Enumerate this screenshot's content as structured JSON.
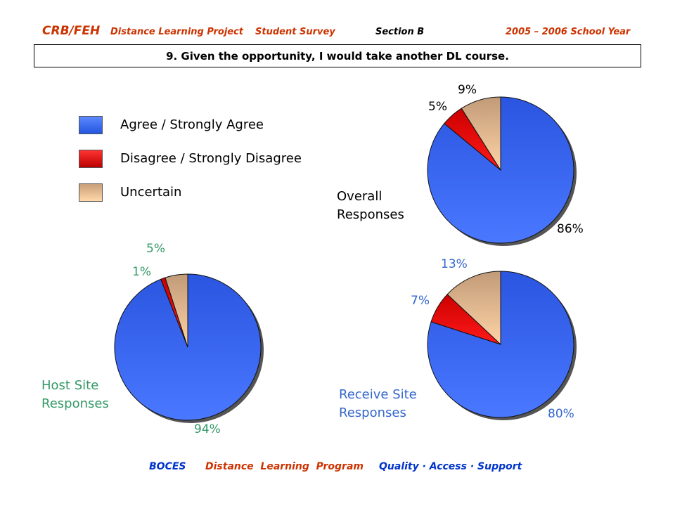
{
  "header": {
    "brand": "CRB/FEH",
    "project": "Distance Learning Project",
    "survey": "Student Survey",
    "section": "Section B",
    "year": "2005 – 2006 School Year"
  },
  "question": "9. Given the opportunity, I would take another DL course.",
  "legend": [
    {
      "label": "Agree / Strongly Agree",
      "color": "#3366ff"
    },
    {
      "label": "Disagree / Strongly Disagree",
      "color": "#ff0000"
    },
    {
      "label": "Uncertain",
      "color": "#f5c99a"
    }
  ],
  "colors": {
    "agree": "#3366ff",
    "disagree": "#ff0000",
    "uncertain": "#f5c99a",
    "overall_labels": "#000000",
    "host_labels": "#339966",
    "receive_labels": "#3366cc",
    "header": "#cc3300",
    "footer_blue": "#0033cc"
  },
  "chart_data": [
    {
      "type": "pie",
      "title": "Overall Responses",
      "title_lines": [
        "Overall",
        "Responses"
      ],
      "categories": [
        "Agree / Strongly Agree",
        "Disagree / Strongly Disagree",
        "Uncertain"
      ],
      "values": [
        86,
        5,
        9
      ],
      "labels": [
        "86%",
        "5%",
        "9%"
      ]
    },
    {
      "type": "pie",
      "title": "Host Site Responses",
      "title_lines": [
        "Host Site",
        "Responses"
      ],
      "categories": [
        "Agree / Strongly Agree",
        "Disagree / Strongly Disagree",
        "Uncertain"
      ],
      "values": [
        94,
        1,
        5
      ],
      "labels": [
        "94%",
        "1%",
        "5%"
      ]
    },
    {
      "type": "pie",
      "title": "Receive Site Responses",
      "title_lines": [
        "Receive Site",
        "Responses"
      ],
      "categories": [
        "Agree / Strongly Agree",
        "Disagree / Strongly Disagree",
        "Uncertain"
      ],
      "values": [
        80,
        7,
        13
      ],
      "labels": [
        "80%",
        "7%",
        "13%"
      ]
    }
  ],
  "footer": {
    "org": "BOCES",
    "program": "Distance  Learning  Program",
    "tagline": "Quality · Access · Support"
  }
}
